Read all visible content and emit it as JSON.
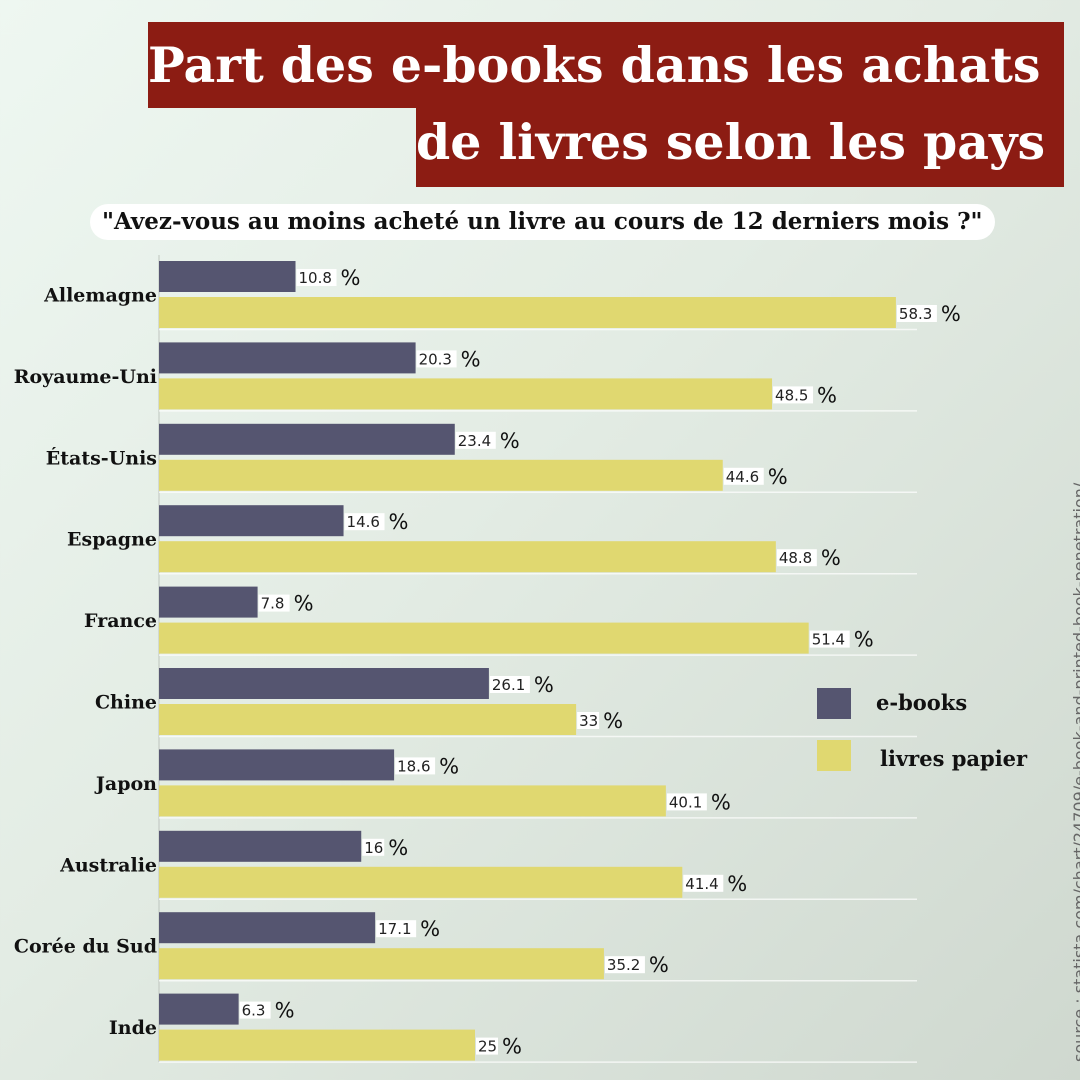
{
  "title_line1": "Part des e-books dans les achats",
  "title_line2": "de livres selon les pays",
  "subtitle": "\"Avez-vous au moins acheté un livre au cours de 12 derniers mois ?\"",
  "source": "source : statista.com/chart/24709/e-book-and-printed-book-penetration/",
  "colors": {
    "title_bg": "#8c1c13",
    "ebooks": "#555570",
    "paper": "#e0d870"
  },
  "chart_data": {
    "type": "bar",
    "orientation": "horizontal",
    "categories": [
      "Allemagne",
      "Royaume-Uni",
      "États-Unis",
      "Espagne",
      "France",
      "Chine",
      "Japon",
      "Australie",
      "Corée du Sud",
      "Inde"
    ],
    "series": [
      {
        "name": "e-books",
        "values": [
          10.8,
          20.3,
          23.4,
          14.6,
          7.8,
          26.1,
          18.6,
          16,
          17.1,
          6.3
        ]
      },
      {
        "name": "livres papier",
        "values": [
          58.3,
          48.5,
          44.6,
          48.8,
          51.4,
          33,
          40.1,
          41.4,
          35.2,
          25
        ]
      }
    ],
    "value_suffix": "%",
    "legend_position": "right",
    "grid": true
  }
}
